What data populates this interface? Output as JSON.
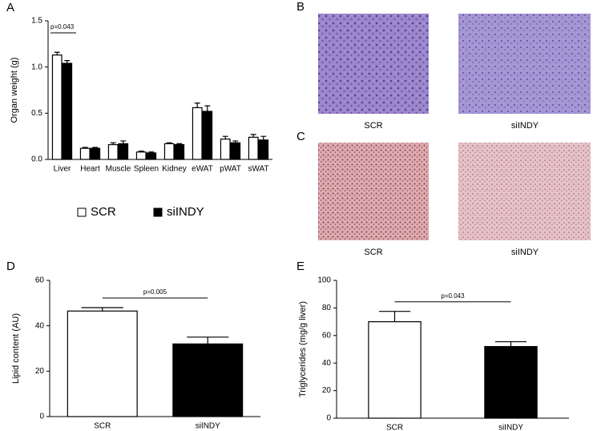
{
  "chart_data": [
    {
      "type": "bar",
      "panel": "A",
      "ylabel": "Organ weight (g)",
      "categories": [
        "Liver",
        "Heart",
        "Muscle",
        "Spleen",
        "Kidney",
        "eWAT",
        "pWAT",
        "sWAT"
      ],
      "series": [
        {
          "name": "SCR",
          "color": "#ffffff",
          "values": [
            1.13,
            0.12,
            0.16,
            0.08,
            0.17,
            0.56,
            0.22,
            0.24
          ],
          "errors": [
            0.03,
            0.01,
            0.02,
            0.01,
            0.01,
            0.05,
            0.03,
            0.03
          ]
        },
        {
          "name": "siINDY",
          "color": "#000000",
          "values": [
            1.04,
            0.12,
            0.17,
            0.07,
            0.16,
            0.52,
            0.18,
            0.21
          ],
          "errors": [
            0.03,
            0.01,
            0.03,
            0.01,
            0.01,
            0.06,
            0.02,
            0.04
          ]
        }
      ],
      "ylim": [
        0,
        1.5
      ],
      "yticks": [
        {
          "value": 0,
          "label": "0.0"
        },
        0.5,
        {
          "value": 1,
          "label": "1.0"
        },
        1.5
      ],
      "annotation": "p=0.043"
    },
    {
      "type": "bar",
      "panel": "D",
      "ylabel": "Lipid content (AU)",
      "categories": [
        "SCR",
        "siINDY"
      ],
      "values": [
        46.5,
        32
      ],
      "errors": [
        1.5,
        3
      ],
      "colors": [
        "#ffffff",
        "#000000"
      ],
      "ylim": [
        0,
        60
      ],
      "yticks": [
        0,
        20,
        40,
        60
      ],
      "annotation": "p=0.005"
    },
    {
      "type": "bar",
      "panel": "E",
      "ylabel": "Triglycerides (mg/g liver)",
      "categories": [
        "SCR",
        "siINDY"
      ],
      "values": [
        70,
        52
      ],
      "errors": [
        7.5,
        3.5
      ],
      "colors": [
        "#ffffff",
        "#000000"
      ],
      "ylim": [
        0,
        100
      ],
      "yticks": [
        0,
        20,
        40,
        60,
        80,
        100
      ],
      "annotation": "p=0.043"
    }
  ],
  "histology": [
    {
      "panel": "B",
      "captions": [
        "SCR",
        "siINDY"
      ]
    },
    {
      "panel": "C",
      "captions": [
        "SCR",
        "siINDY"
      ]
    }
  ]
}
